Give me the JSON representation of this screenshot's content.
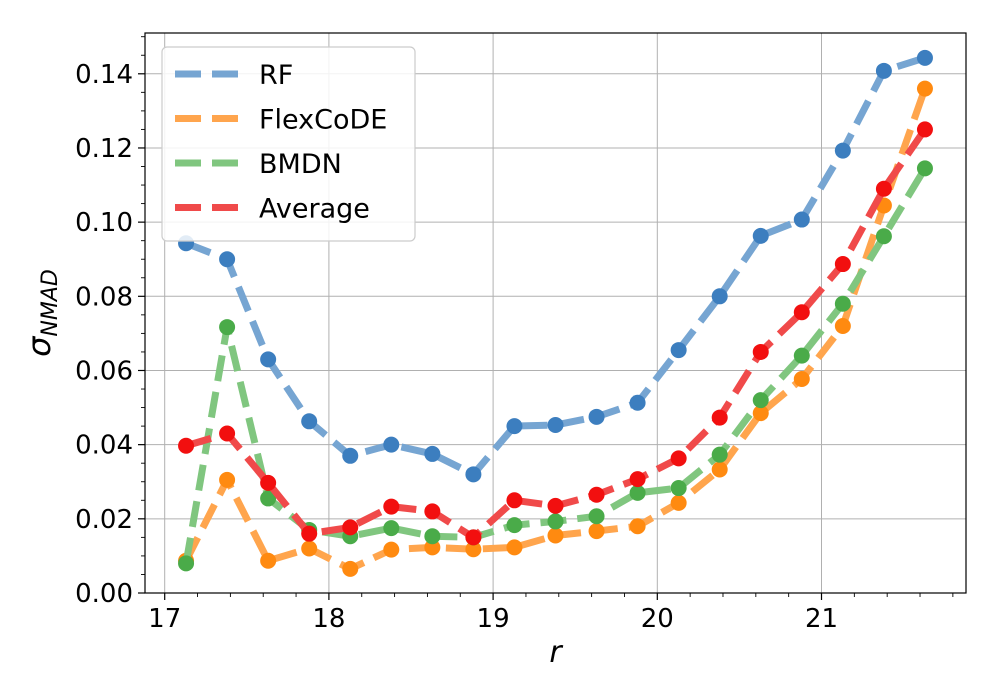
{
  "chart_data": {
    "type": "line",
    "xlabel": "r",
    "ylabel": "σ",
    "ylabel_sub": "NMAD",
    "xlim": [
      16.88,
      21.88
    ],
    "ylim": [
      0.0,
      0.151
    ],
    "grid": true,
    "legend_position": "top-left",
    "x_ticks": [
      17,
      18,
      19,
      20,
      21
    ],
    "x_tick_labels": [
      "17",
      "18",
      "19",
      "20",
      "21"
    ],
    "y_ticks": [
      0.0,
      0.02,
      0.04,
      0.06,
      0.08,
      0.1,
      0.12,
      0.14
    ],
    "y_tick_labels": [
      "0.00",
      "0.02",
      "0.04",
      "0.06",
      "0.08",
      "0.10",
      "0.12",
      "0.14"
    ],
    "x": [
      17.13,
      17.38,
      17.63,
      17.88,
      18.13,
      18.38,
      18.63,
      18.88,
      19.13,
      19.38,
      19.63,
      19.88,
      20.13,
      20.38,
      20.63,
      20.88,
      21.13,
      21.38,
      21.63
    ],
    "series": [
      {
        "name": "RF",
        "line_color": "#76a5d2",
        "marker_color": "#3c7ebf",
        "values": [
          0.0943,
          0.09,
          0.063,
          0.0463,
          0.037,
          0.04,
          0.0375,
          0.032,
          0.045,
          0.0453,
          0.0475,
          0.0513,
          0.0655,
          0.08,
          0.0963,
          0.1007,
          0.1193,
          0.1408,
          0.1443
        ]
      },
      {
        "name": "FlexCoDE",
        "line_color": "#ffa54d",
        "marker_color": "#ff8a10",
        "values": [
          0.0087,
          0.0305,
          0.0087,
          0.012,
          0.0065,
          0.0117,
          0.0123,
          0.0118,
          0.0123,
          0.0155,
          0.0167,
          0.018,
          0.0243,
          0.0333,
          0.0485,
          0.0577,
          0.072,
          0.1045,
          0.136
        ]
      },
      {
        "name": "BMDN",
        "line_color": "#80c67f",
        "marker_color": "#4aab49",
        "values": [
          0.008,
          0.0717,
          0.0255,
          0.017,
          0.0153,
          0.0175,
          0.0153,
          0.015,
          0.0183,
          0.0193,
          0.0207,
          0.027,
          0.0283,
          0.0373,
          0.052,
          0.064,
          0.078,
          0.0962,
          0.1145
        ]
      },
      {
        "name": "Average",
        "line_color": "#f04a4a",
        "marker_color": "#f20f0f",
        "values": [
          0.0397,
          0.043,
          0.0297,
          0.016,
          0.0177,
          0.0233,
          0.022,
          0.015,
          0.025,
          0.0235,
          0.0265,
          0.0307,
          0.0363,
          0.0473,
          0.065,
          0.0757,
          0.0887,
          0.109,
          0.125
        ]
      }
    ]
  }
}
